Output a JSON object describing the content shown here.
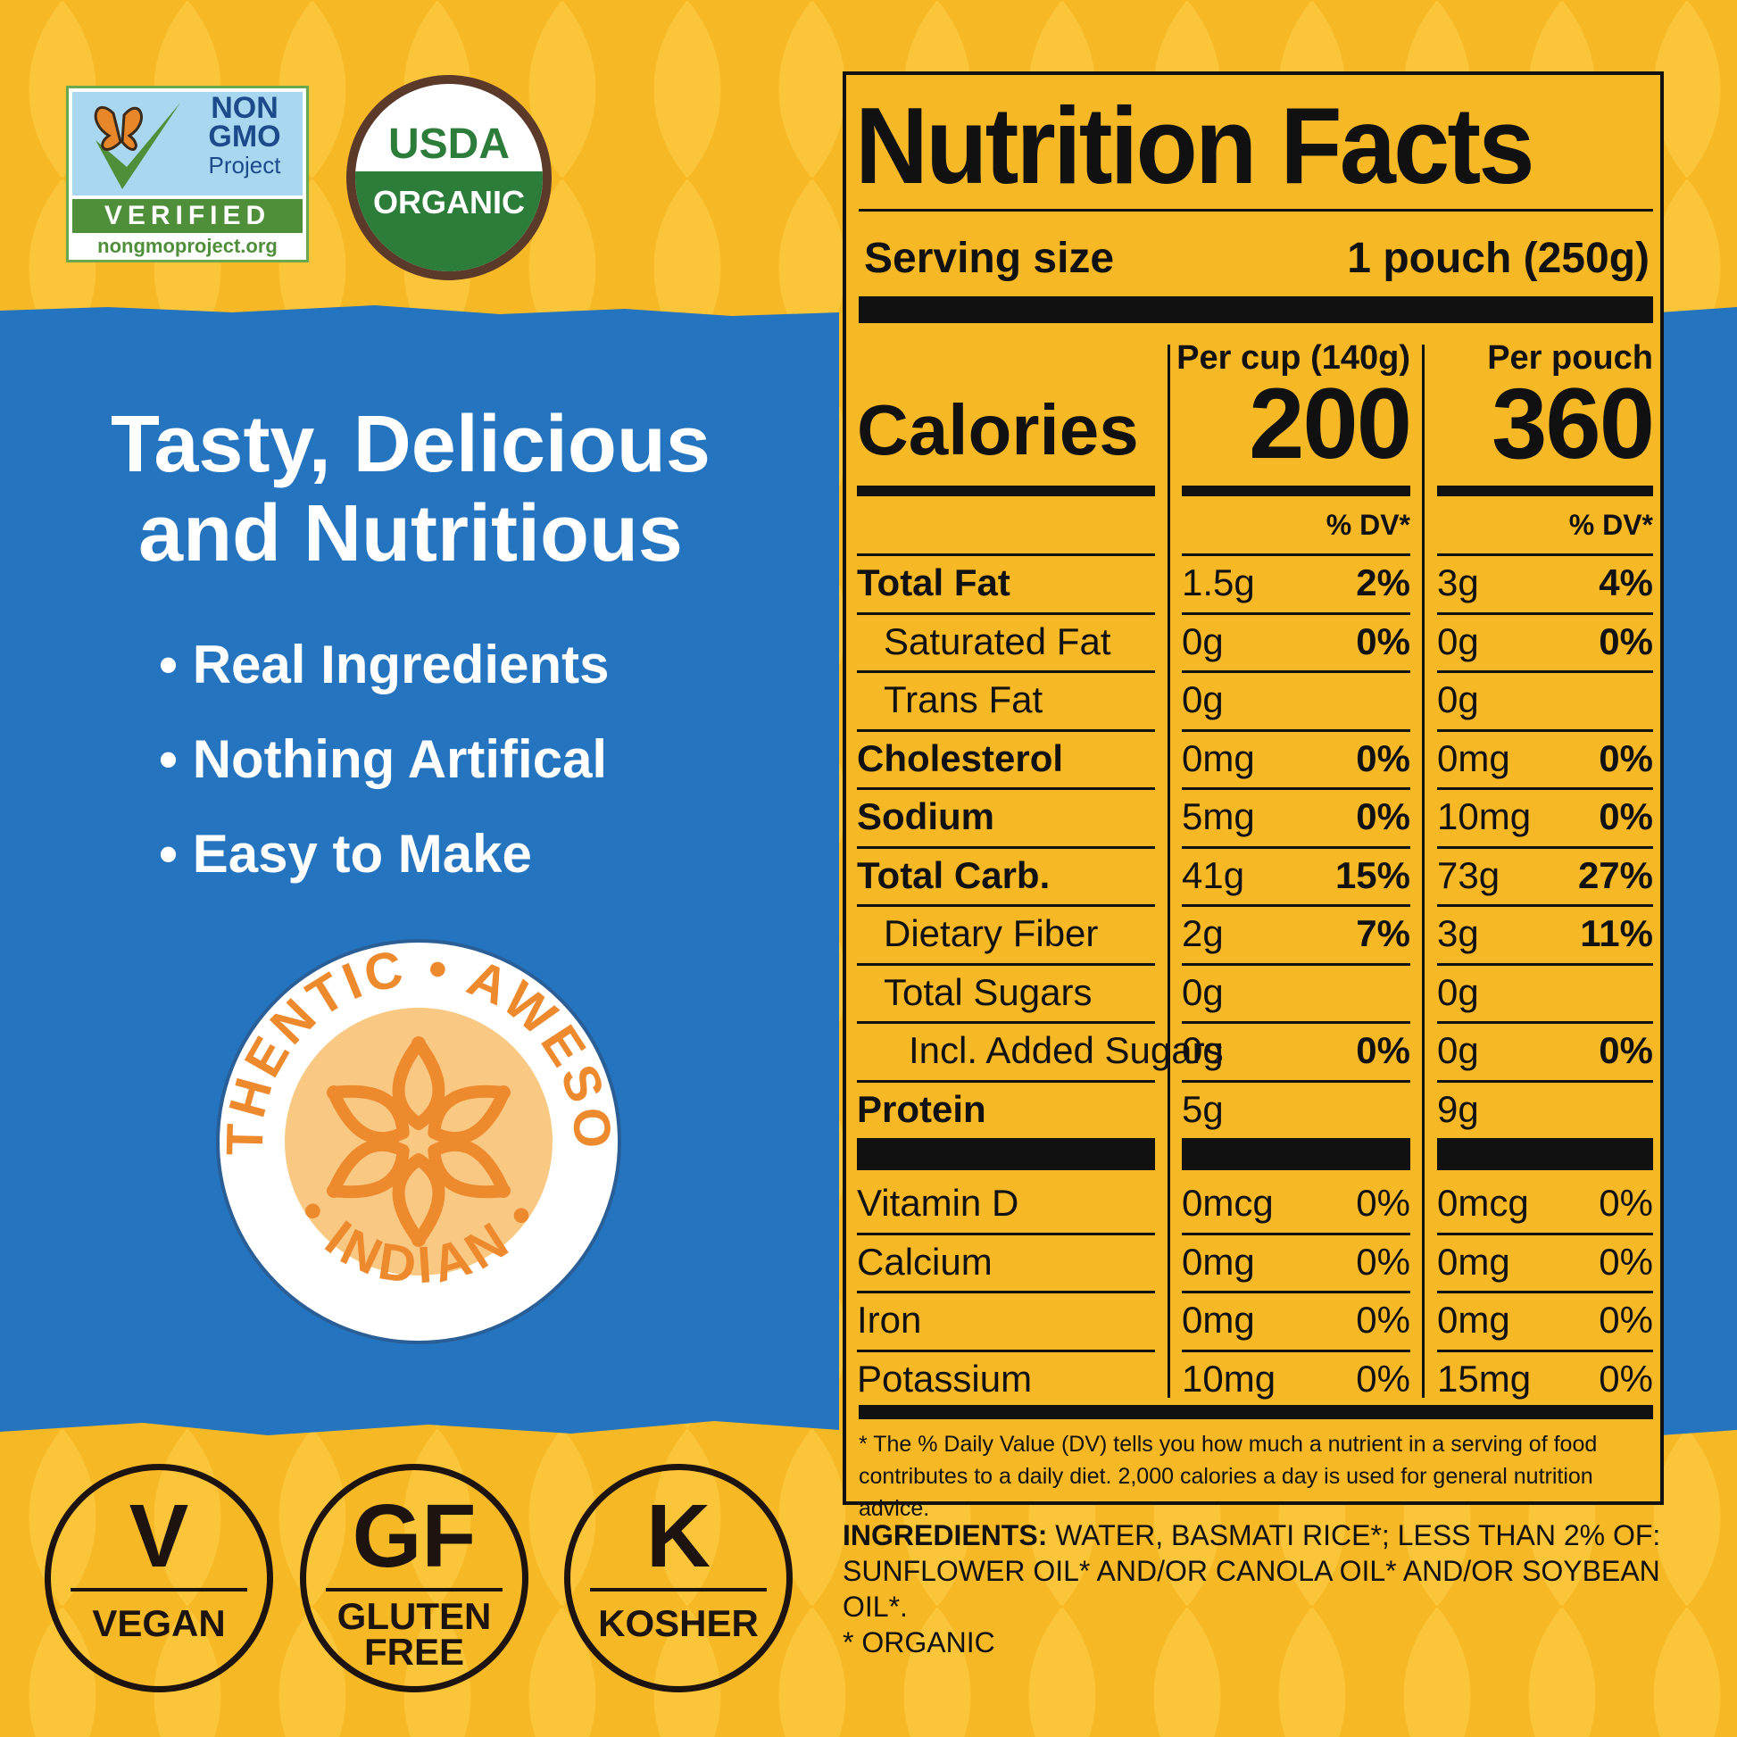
{
  "badges": {
    "nongmo": {
      "line1": "NON",
      "line2": "GMO",
      "line3": "Project",
      "verified": "VERIFIED",
      "site": "nongmoproject.org"
    },
    "usda": {
      "top": "USDA",
      "bottom": "ORGANIC"
    },
    "seal": {
      "arc_top": "AUTHENTIC • AWESOME",
      "arc_bottom": "• INDIAN •"
    }
  },
  "headline": {
    "line1": "Tasty, Delicious",
    "line2": "and Nutritious"
  },
  "bullets": [
    "Real Ingredients",
    "Nothing Artifical",
    "Easy to Make"
  ],
  "diet_badges": [
    {
      "big": "V",
      "small1": "VEGAN",
      "small2": ""
    },
    {
      "big": "GF",
      "small1": "GLUTEN",
      "small2": "FREE"
    },
    {
      "big": "K",
      "small1": "KOSHER",
      "small2": ""
    }
  ],
  "nutrition": {
    "title": "Nutrition Facts",
    "serving_label": "Serving size",
    "serving_value": "1 pouch (250g)",
    "col1_head": "Per cup (140g)",
    "col2_head": "Per pouch",
    "calories_label": "Calories",
    "calories_col1": "200",
    "calories_col2": "360",
    "dv_head": "% DV*",
    "rows": [
      {
        "label": "Total Fat",
        "bold": true,
        "indent": 0,
        "a": "1.5g",
        "adv": "2%",
        "b": "3g",
        "bdv": "4%"
      },
      {
        "label": "Saturated Fat",
        "bold": false,
        "indent": 1,
        "a": "0g",
        "adv": "0%",
        "b": "0g",
        "bdv": "0%"
      },
      {
        "label": "Trans Fat",
        "bold": false,
        "indent": 1,
        "a": "0g",
        "adv": "",
        "b": "0g",
        "bdv": ""
      },
      {
        "label": "Cholesterol",
        "bold": true,
        "indent": 0,
        "a": "0mg",
        "adv": "0%",
        "b": "0mg",
        "bdv": "0%"
      },
      {
        "label": "Sodium",
        "bold": true,
        "indent": 0,
        "a": "5mg",
        "adv": "0%",
        "b": "10mg",
        "bdv": "0%"
      },
      {
        "label": "Total Carb.",
        "bold": true,
        "indent": 0,
        "a": "41g",
        "adv": "15%",
        "b": "73g",
        "bdv": "27%"
      },
      {
        "label": "Dietary Fiber",
        "bold": false,
        "indent": 1,
        "a": "2g",
        "adv": "7%",
        "b": "3g",
        "bdv": "11%"
      },
      {
        "label": "Total Sugars",
        "bold": false,
        "indent": 1,
        "a": "0g",
        "adv": "",
        "b": "0g",
        "bdv": ""
      },
      {
        "label": "Incl. Added Sugars",
        "bold": false,
        "indent": 2,
        "a": "0g",
        "adv": "0%",
        "b": "0g",
        "bdv": "0%"
      },
      {
        "label": "Protein",
        "bold": true,
        "indent": 0,
        "a": "5g",
        "adv": "",
        "b": "9g",
        "bdv": ""
      }
    ],
    "vitamins": [
      {
        "label": "Vitamin D",
        "a": "0mcg",
        "adv": "0%",
        "b": "0mcg",
        "bdv": "0%"
      },
      {
        "label": "Calcium",
        "a": "0mg",
        "adv": "0%",
        "b": "0mg",
        "bdv": "0%"
      },
      {
        "label": "Iron",
        "a": "0mg",
        "adv": "0%",
        "b": "0mg",
        "bdv": "0%"
      },
      {
        "label": "Potassium",
        "a": "10mg",
        "adv": "0%",
        "b": "15mg",
        "bdv": "0%"
      }
    ],
    "footnote": "* The % Daily Value (DV) tells you how much a nutrient in a serving of food contributes to a daily diet. 2,000 calories a day is used for general nutrition advice."
  },
  "ingredients": {
    "label": "INGREDIENTS:",
    "text": "WATER, BASMATI RICE*; LESS THAN 2% OF: SUNFLOWER OIL* AND/OR CANOLA OIL* AND/OR SOYBEAN OIL*.",
    "note": "* ORGANIC"
  },
  "colors": {
    "yellow": "#F7B825",
    "blue": "#2474BF",
    "orange": "#EE8A2E",
    "dark": "#1e140f"
  }
}
